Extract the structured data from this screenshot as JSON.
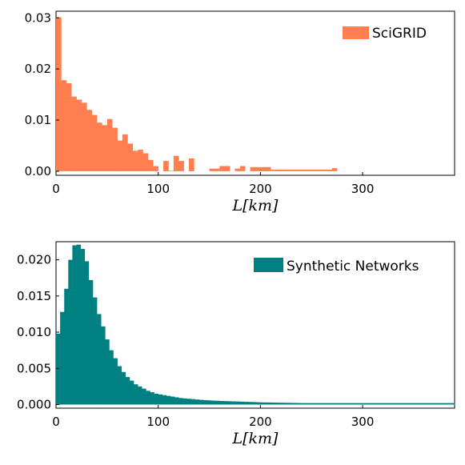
{
  "chart_data": [
    {
      "type": "bar",
      "xlabel": "L[km]",
      "ylabel": "",
      "xlim": [
        0,
        390
      ],
      "ylim": [
        -0.0008,
        0.0313
      ],
      "x_ticks": [
        "0",
        "100",
        "200",
        "300"
      ],
      "y_ticks": [
        "0.00",
        "0.01",
        "0.02",
        "0.03"
      ],
      "legend_position": "top-right",
      "series": [
        {
          "name": "SciGRID",
          "color": "#ff7f50",
          "bin_width": 5,
          "bins_start": [
            0,
            5,
            10,
            15,
            20,
            25,
            30,
            35,
            40,
            45,
            50,
            55,
            60,
            65,
            70,
            75,
            80,
            85,
            90,
            95,
            100,
            105,
            110,
            115,
            120,
            125,
            130,
            135,
            140,
            145,
            150,
            155,
            160,
            165,
            170,
            175,
            180,
            185,
            190,
            195,
            200,
            205,
            210,
            215,
            220,
            225,
            230,
            235,
            240,
            245,
            250,
            255,
            260,
            265,
            270
          ],
          "values": [
            0.0301,
            0.0178,
            0.0172,
            0.0146,
            0.014,
            0.0134,
            0.012,
            0.011,
            0.0095,
            0.009,
            0.0102,
            0.0085,
            0.006,
            0.0072,
            0.0054,
            0.004,
            0.0042,
            0.0035,
            0.0022,
            0.001,
            0.0,
            0.002,
            0.0001,
            0.003,
            0.002,
            0.0,
            0.0025,
            0.0,
            0.0,
            0.0,
            0.0005,
            0.0005,
            0.001,
            0.001,
            0.0,
            0.0005,
            0.001,
            0.0,
            0.0008,
            0.0008,
            0.0008,
            0.0008,
            0.0003,
            0.0003,
            0.0003,
            0.0003,
            0.0003,
            0.0003,
            0.0003,
            0.0003,
            0.0003,
            0.0003,
            0.0003,
            0.0003,
            0.0006
          ]
        }
      ]
    },
    {
      "type": "bar",
      "xlabel": "L[km]",
      "ylabel": "",
      "xlim": [
        0,
        390
      ],
      "ylim": [
        -0.0005,
        0.0225
      ],
      "x_ticks": [
        "0",
        "100",
        "200",
        "300"
      ],
      "y_ticks": [
        "0.000",
        "0.005",
        "0.010",
        "0.015",
        "0.020"
      ],
      "legend_position": "top-right",
      "series": [
        {
          "name": "Synthetic Networks",
          "color": "#008080",
          "bin_width": 4,
          "bins_start": [
            0,
            4,
            8,
            12,
            16,
            20,
            24,
            28,
            32,
            36,
            40,
            44,
            48,
            52,
            56,
            60,
            64,
            68,
            72,
            76,
            80,
            84,
            88,
            92,
            96,
            100,
            104,
            108,
            112,
            116,
            120,
            124,
            128,
            132,
            136,
            140,
            144,
            148,
            152,
            156,
            160,
            164,
            168,
            172,
            176,
            180,
            184,
            188,
            192,
            196,
            200,
            204,
            208,
            212,
            216,
            220,
            224,
            228,
            232,
            236,
            240,
            244,
            248,
            252,
            256,
            260,
            264,
            268,
            272,
            276,
            280,
            284,
            288,
            292,
            296,
            300,
            304,
            308,
            312,
            316,
            320,
            324,
            328,
            332,
            336,
            340,
            344,
            348,
            352,
            356,
            360,
            364,
            368,
            372,
            376,
            380,
            384,
            388
          ],
          "values": [
            0.0098,
            0.0128,
            0.016,
            0.02,
            0.022,
            0.0221,
            0.0215,
            0.0198,
            0.0172,
            0.0148,
            0.0125,
            0.0108,
            0.009,
            0.0075,
            0.0064,
            0.0053,
            0.0045,
            0.0038,
            0.0033,
            0.0028,
            0.0025,
            0.0022,
            0.0019,
            0.0017,
            0.0015,
            0.0014,
            0.0013,
            0.0012,
            0.0011,
            0.001,
            0.0009,
            0.00085,
            0.0008,
            0.00075,
            0.0007,
            0.00065,
            0.0006,
            0.00058,
            0.00055,
            0.00053,
            0.0005,
            0.00048,
            0.00046,
            0.00044,
            0.00042,
            0.0004,
            0.00038,
            0.00036,
            0.00034,
            0.00032,
            0.0003,
            0.00029,
            0.00028,
            0.00027,
            0.00026,
            0.00025,
            0.00024,
            0.00023,
            0.00022,
            0.00021,
            0.0002,
            0.0002,
            0.0002,
            0.0002,
            0.0002,
            0.0002,
            0.0002,
            0.0002,
            0.0002,
            0.0002,
            0.0002,
            0.0002,
            0.0002,
            0.0002,
            0.0002,
            0.0002,
            0.0002,
            0.0002,
            0.0002,
            0.0002,
            0.0002,
            0.0002,
            0.0002,
            0.0002,
            0.0002,
            0.0002,
            0.0002,
            0.0002,
            0.0002,
            0.0002,
            0.0002,
            0.0002,
            0.0002,
            0.0002,
            0.0002,
            0.0002,
            0.0002,
            0.0002
          ]
        }
      ]
    }
  ]
}
